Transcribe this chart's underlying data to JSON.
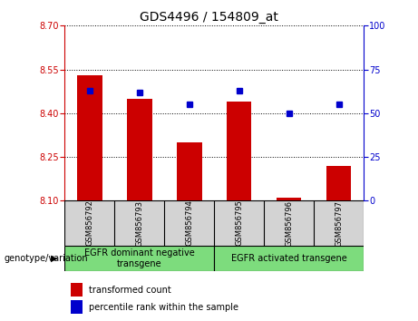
{
  "title": "GDS4496 / 154809_at",
  "categories": [
    "GSM856792",
    "GSM856793",
    "GSM856794",
    "GSM856795",
    "GSM856796",
    "GSM856797"
  ],
  "bar_values": [
    8.53,
    8.45,
    8.3,
    8.44,
    8.11,
    8.22
  ],
  "bar_base": 8.1,
  "percentile_values": [
    63,
    62,
    55,
    63,
    50,
    55
  ],
  "ylim": [
    8.1,
    8.7
  ],
  "y_ticks": [
    8.1,
    8.25,
    8.4,
    8.55,
    8.7
  ],
  "right_yticks": [
    0,
    25,
    50,
    75,
    100
  ],
  "bar_color": "#cc0000",
  "percentile_color": "#0000cc",
  "group1_label": "EGFR dominant negative\ntransgene",
  "group2_label": "EGFR activated transgene",
  "genotype_label": "genotype/variation",
  "legend_bar_label": "transformed count",
  "legend_pct_label": "percentile rank within the sample",
  "title_fontsize": 10,
  "tick_fontsize": 7,
  "label_fontsize": 7,
  "cat_fontsize": 6,
  "geno_fontsize": 7,
  "legend_fontsize": 7
}
